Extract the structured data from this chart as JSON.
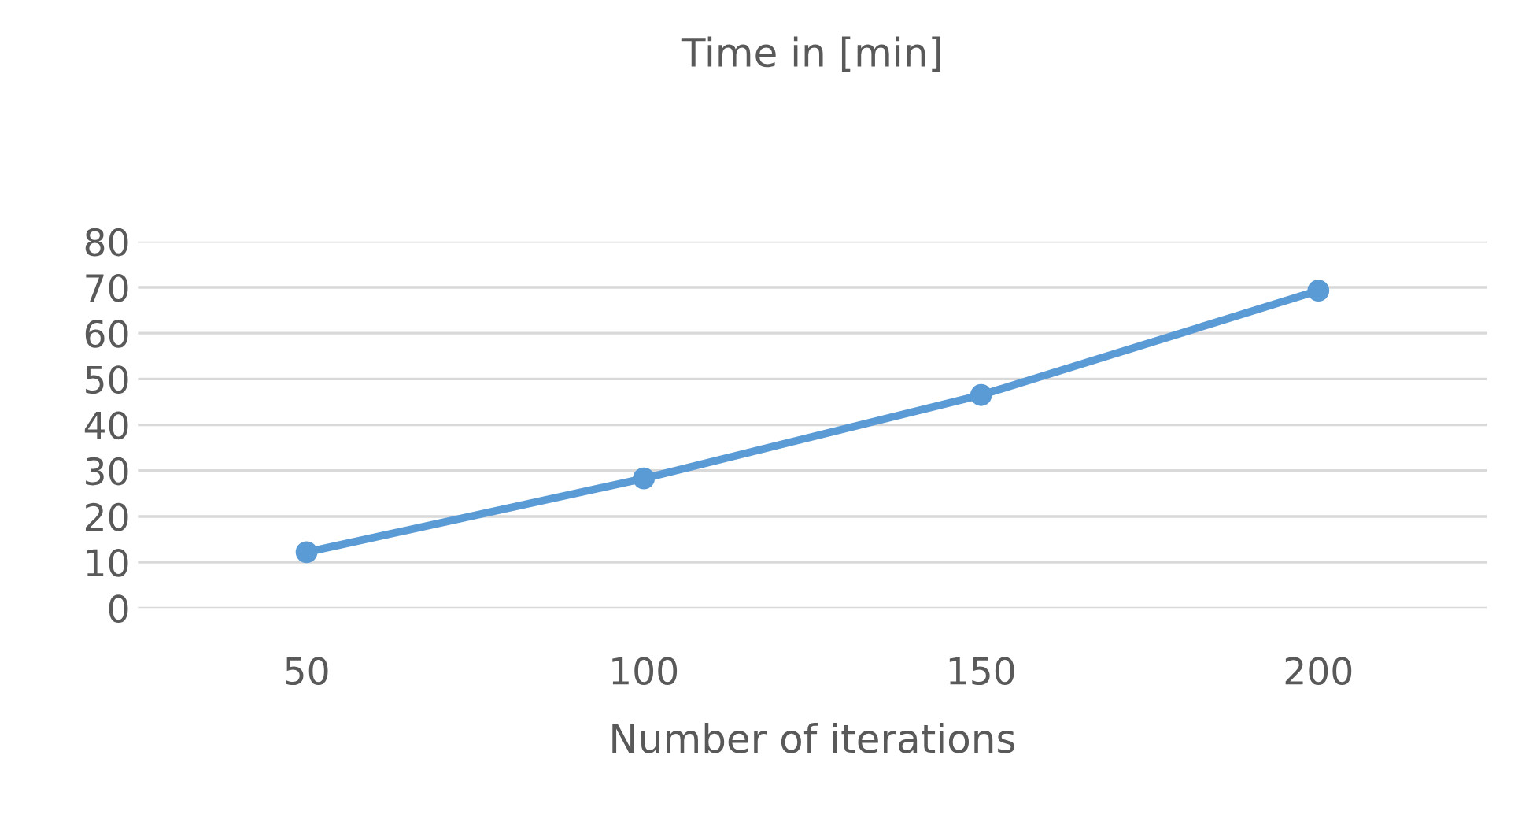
{
  "chart_data": {
    "type": "line",
    "title": "Time in [min]",
    "xlabel": "Number of iterations",
    "categories": [
      "50",
      "100",
      "150",
      "200"
    ],
    "series": [
      {
        "color": "#5b9bd5",
        "values": [
          12.2,
          28.3,
          46.5,
          69.3
        ]
      }
    ],
    "ylim": [
      0,
      80
    ],
    "yticks": [
      0,
      10,
      20,
      30,
      40,
      50,
      60,
      70,
      80
    ],
    "grid": "y",
    "marker": "circle",
    "line_style": "solid"
  }
}
